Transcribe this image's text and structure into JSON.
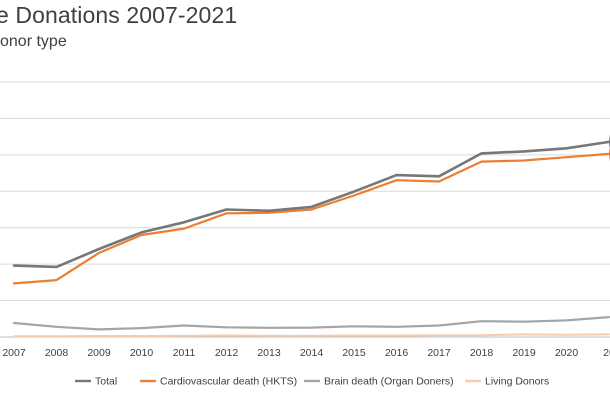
{
  "chart_data": {
    "type": "line",
    "title": "e Donations 2007-2021",
    "subtitle": "onor type",
    "x": [
      "2007",
      "2008",
      "2009",
      "2010",
      "2011",
      "2012",
      "2013",
      "2014",
      "2015",
      "2016",
      "2017",
      "2018",
      "2019",
      "2020",
      "20"
    ],
    "ylim": [
      0,
      10
    ],
    "grid": true,
    "legend_placement": "bottom",
    "series": [
      {
        "name": "Total",
        "color": "#777777",
        "values": [
          2.8,
          2.75,
          3.45,
          4.1,
          4.5,
          5.0,
          4.95,
          5.1,
          5.7,
          6.35,
          6.3,
          7.2,
          7.28,
          7.4,
          7.65
        ]
      },
      {
        "name": "Cardiovascular death (HKTS)",
        "color": "#ED7D31",
        "values": [
          2.1,
          2.23,
          3.3,
          4.0,
          4.25,
          4.85,
          4.87,
          5.0,
          5.55,
          6.15,
          6.1,
          6.88,
          6.92,
          7.05,
          7.18
        ]
      },
      {
        "name": "Brain death (Organ Doners)",
        "color": "#A5A5A5",
        "values": [
          0.55,
          0.4,
          0.3,
          0.35,
          0.45,
          0.38,
          0.36,
          0.37,
          0.42,
          0.4,
          0.45,
          0.62,
          0.6,
          0.65,
          0.78
        ]
      },
      {
        "name": "Living Donors",
        "color": "#F8CBAD",
        "values": [
          0.03,
          0.03,
          0.04,
          0.04,
          0.05,
          0.06,
          0.05,
          0.05,
          0.06,
          0.06,
          0.07,
          0.07,
          0.1,
          0.09,
          0.1
        ]
      }
    ]
  }
}
